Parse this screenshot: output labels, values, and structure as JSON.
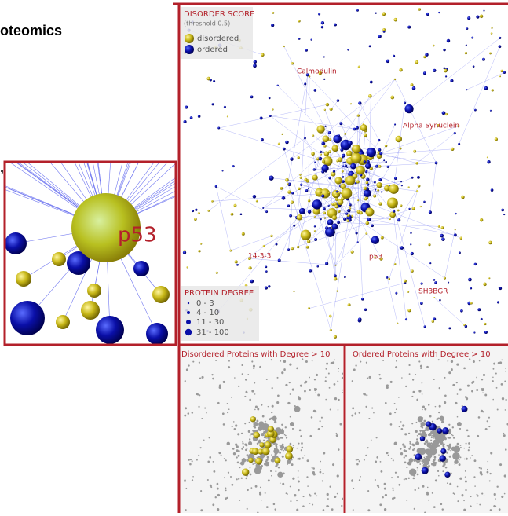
{
  "header": {
    "title": "oteomics",
    "fragment": ","
  },
  "inset": {
    "label": "p53"
  },
  "disorder_legend": {
    "title": "DISORDER SCORE",
    "subtitle": "(threshold 0.5)",
    "items": [
      "disordered",
      "ordered"
    ]
  },
  "degree_legend": {
    "title": "PROTEIN DEGREE",
    "items": [
      "0 - 3",
      "4 - 10",
      "11 - 30",
      "31 - 100"
    ]
  },
  "node_labels": [
    "Calmodulin",
    "Alpha Synuclein",
    "14-3-3",
    "p53",
    "SH3BGR"
  ],
  "panels": {
    "disordered": "Disordered Proteins with Degree > 10",
    "ordered": "Ordered Proteins with Degree > 10"
  }
}
